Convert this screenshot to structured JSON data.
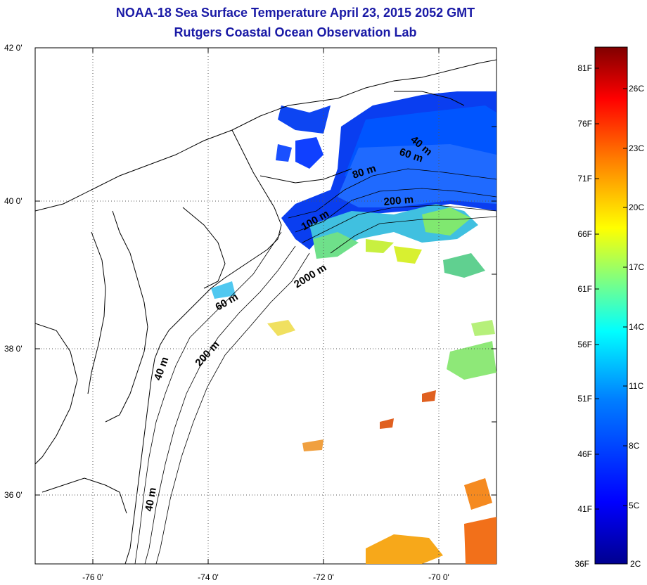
{
  "title": {
    "line1": "NOAA-18 Sea Surface Temperature April 23, 2015 2052 GMT",
    "line2": "Rutgers Coastal Ocean Observation Lab"
  },
  "map": {
    "lat_range": [
      35,
      42
    ],
    "lon_range": [
      -77,
      -69
    ],
    "lat_ticks": [
      "42 0'",
      "40 0'",
      "38 0'",
      "36 0'"
    ],
    "lon_ticks": [
      "-76 0'",
      "-74 0'",
      "-72 0'",
      "-70 0'"
    ],
    "grid": "dotted",
    "contour_labels": [
      "40 m",
      "60 m",
      "80 m",
      "100 m",
      "200 m",
      "2000 m",
      "60 m",
      "200 m",
      "40 m",
      "40 m"
    ]
  },
  "colorbar": {
    "fahrenheit_labels": [
      "81F",
      "76F",
      "71F",
      "66F",
      "61F",
      "56F",
      "51F",
      "46F",
      "41F",
      "36F"
    ],
    "celsius_labels": [
      "26C",
      "23C",
      "20C",
      "17C",
      "14C",
      "11C",
      "8C",
      "5C",
      "2C"
    ],
    "range_c": [
      2,
      28
    ],
    "colormap": [
      "#00008f",
      "#0000ff",
      "#0080ff",
      "#00ffff",
      "#80ff80",
      "#ffff00",
      "#ff8000",
      "#ff0000",
      "#800000"
    ]
  }
}
